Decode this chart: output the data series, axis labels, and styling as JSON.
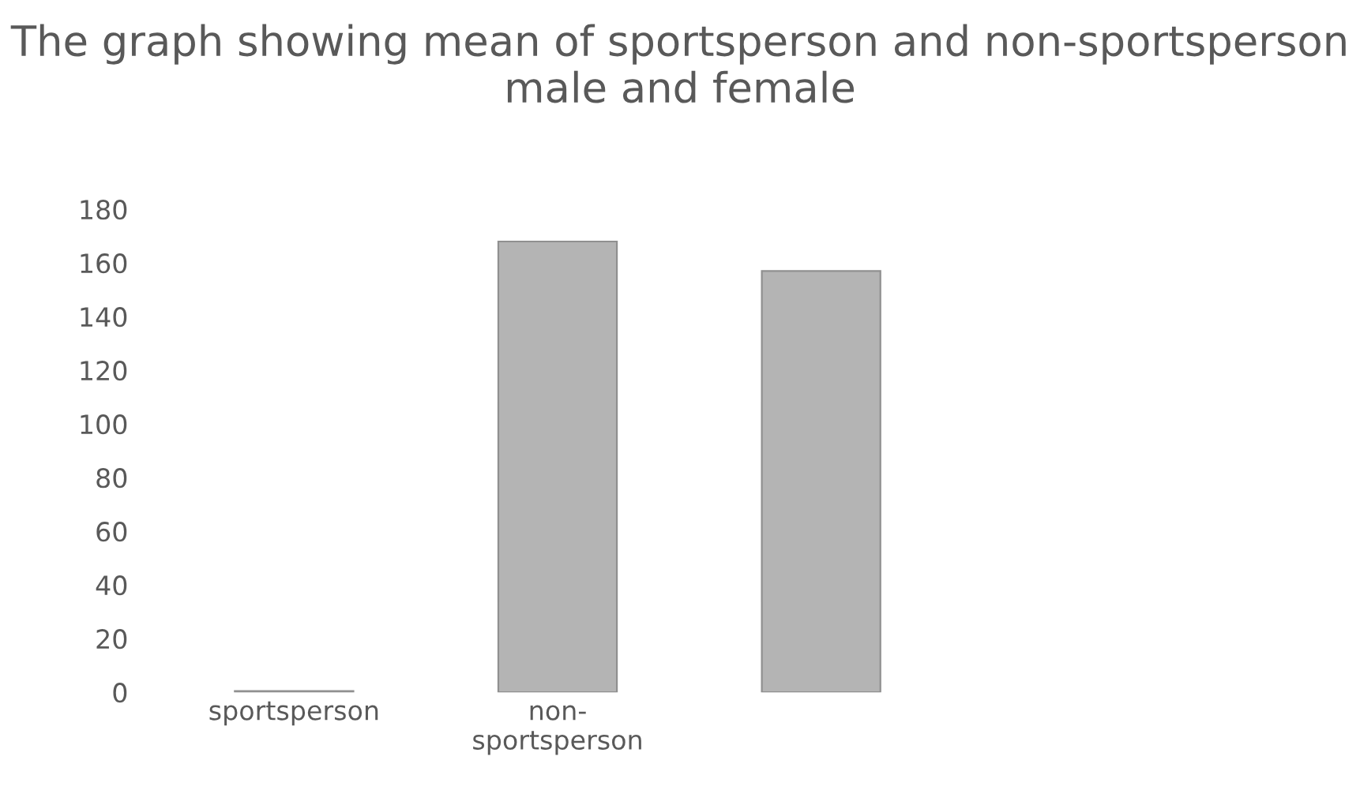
{
  "chart_data": {
    "type": "bar",
    "title": "The graph showing mean of sportsperson and non-sportsperson male and female",
    "categories": [
      "sportsperson",
      "non-\nsportsperson",
      null
    ],
    "values": [
      0.5,
      168,
      157
    ],
    "color": "#b4b4b4",
    "ylim": [
      0,
      180
    ],
    "yticks": [
      0,
      20,
      40,
      60,
      80,
      100,
      120,
      140,
      160,
      180
    ],
    "grid": false
  }
}
